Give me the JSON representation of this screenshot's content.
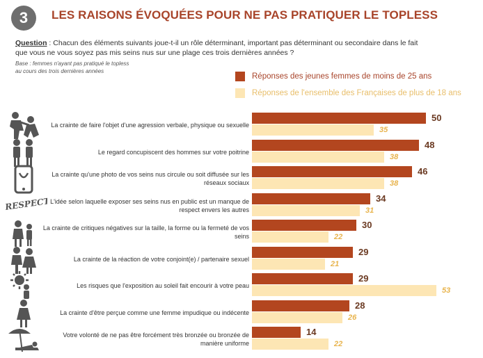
{
  "header": {
    "number": "3",
    "title": "LES RAISONS ÉVOQUÉES POUR NE PAS PRATIQUER LE TOPLESS"
  },
  "question": {
    "label": "Question",
    "line1": " : Chacun des éléments suivants joue-t-il un rôle déterminant, important pas déterminant ou secondaire dans le fait",
    "line2": "que vous ne vous soyez pas mis seins nus sur une plage ces trois dernières années ?"
  },
  "base": {
    "line1": "Base : femmes n'ayant pas pratiqué le topless",
    "line2": "au cours des trois dernières années"
  },
  "colors": {
    "series1": "#b3461f",
    "series2": "#fde6b4"
  },
  "chart_data": {
    "type": "bar",
    "orientation": "horizontal",
    "categories": [
      "La crainte de faire l'objet d'une agression verbale, physique ou sexuelle",
      "Le regard concupiscent des hommes sur votre poitrine",
      "La crainte qu'une photo de vos seins nus circule ou soit diffusée sur les réseaux sociaux",
      "L'idée selon laquelle exposer ses seins nus en public est un manque de respect envers les autres",
      "La crainte de critiques négatives sur la taille, la forme ou la fermeté de vos seins",
      "La crainte de la réaction de votre conjoint(e) / partenaire sexuel",
      "Les risques que l'exposition au soleil fait encourir à votre peau",
      "La crainte d'être perçue comme une femme impudique ou indécente",
      "Votre volonté de ne pas être forcément très bronzée ou bronzée de manière uniforme"
    ],
    "series": [
      {
        "name": "Réponses des jeunes femmes de moins de 25 ans",
        "values": [
          50,
          48,
          46,
          34,
          30,
          29,
          29,
          28,
          14
        ]
      },
      {
        "name": "Réponses de l'ensemble des Françaises de plus de 18 ans",
        "values": [
          35,
          38,
          38,
          31,
          22,
          21,
          53,
          26,
          22
        ]
      }
    ],
    "legend": "top-right",
    "icons": [
      "aggression-icon",
      "men-staring-icon",
      "phone-camera-icon",
      "respect-text-icon",
      "criticism-icon",
      "couple-icon",
      "sun-icon",
      "woman-icon",
      "sunbathing-icon"
    ],
    "icon_texts": {
      "respect-text-icon": "RESPECT."
    }
  }
}
